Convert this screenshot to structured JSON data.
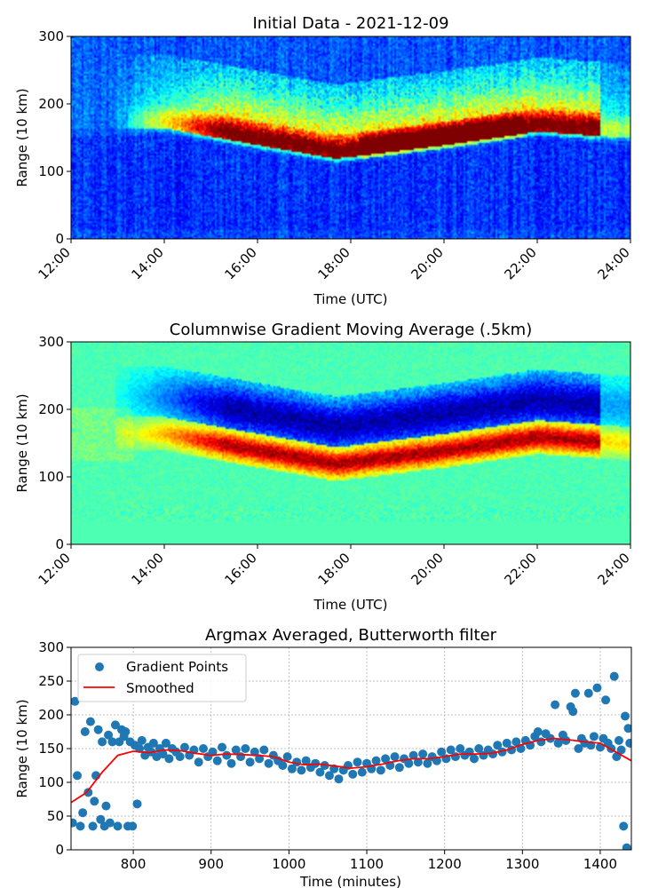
{
  "figure": {
    "panel1": {
      "title": "Initial Data - 2021-12-09",
      "xlabel": "Time (UTC)",
      "ylabel": "Range (10 km)"
    },
    "panel2": {
      "title": "Columnwise Gradient Moving Average (.5km)",
      "xlabel": "Time (UTC)",
      "ylabel": "Range (10 km)"
    },
    "panel3": {
      "title": "Argmax Averaged, Butterworth filter",
      "xlabel": "Time (minutes)",
      "ylabel": "Range (10 km)"
    }
  },
  "chart_data": [
    {
      "type": "heatmap",
      "title": "Initial Data - 2021-12-09",
      "xlabel": "Time (UTC)",
      "ylabel": "Range (10 km)",
      "x_ticks": [
        "12:00",
        "14:00",
        "16:00",
        "18:00",
        "20:00",
        "22:00",
        "24:00"
      ],
      "x_range_minutes": [
        720,
        1440
      ],
      "y_ticks": [
        0,
        100,
        200,
        300
      ],
      "ylim": [
        0,
        300
      ],
      "colormap": "jet",
      "colors": {
        "background": "#0a1aa8",
        "noise": "#1e3cff",
        "mid": "#2fd3ff",
        "high": "#ffd200",
        "peak": "#8b0000"
      },
      "features": {
        "high_band_center_range": [
          [
            720,
            165
          ],
          [
            840,
            165
          ],
          [
            960,
            140
          ],
          [
            1060,
            120
          ],
          [
            1200,
            140
          ],
          [
            1320,
            160
          ],
          [
            1440,
            150
          ]
        ],
        "bright_peak_time_range_minutes": [
          1100,
          1290
        ]
      }
    },
    {
      "type": "heatmap",
      "title": "Columnwise Gradient Moving Average (.5km)",
      "xlabel": "Time (UTC)",
      "ylabel": "Range (10 km)",
      "x_ticks": [
        "12:00",
        "14:00",
        "16:00",
        "18:00",
        "20:00",
        "22:00",
        "24:00"
      ],
      "x_range_minutes": [
        720,
        1440
      ],
      "y_ticks": [
        0,
        100,
        200,
        300
      ],
      "ylim": [
        0,
        300
      ],
      "colormap": "jet",
      "colors": {
        "background": "#3affb4",
        "low_edge": "#0000a0",
        "positive": "#ffe000",
        "max": "#8b0000"
      },
      "features": {
        "flat_band_below_range": 35
      }
    },
    {
      "type": "scatter",
      "title": "Argmax Averaged, Butterworth filter",
      "xlabel": "Time (minutes)",
      "ylabel": "Range (10 km)",
      "xlim": [
        720,
        1440
      ],
      "ylim": [
        0,
        300
      ],
      "x_ticks": [
        800,
        900,
        1000,
        1100,
        1200,
        1300,
        1400
      ],
      "y_ticks": [
        0,
        50,
        100,
        150,
        200,
        250,
        300
      ],
      "grid": true,
      "legend_position": "upper-left",
      "series": [
        {
          "name": "Gradient Points",
          "kind": "scatter",
          "color": "#1f77b4",
          "points": [
            [
              722,
              40
            ],
            [
              725,
              220
            ],
            [
              728,
              110
            ],
            [
              732,
              35
            ],
            [
              735,
              55
            ],
            [
              738,
              175
            ],
            [
              742,
              85
            ],
            [
              745,
              190
            ],
            [
              748,
              35
            ],
            [
              750,
              72
            ],
            [
              752,
              110
            ],
            [
              755,
              178
            ],
            [
              758,
              45
            ],
            [
              760,
              160
            ],
            [
              763,
              35
            ],
            [
              765,
              65
            ],
            [
              768,
              170
            ],
            [
              770,
              40
            ],
            [
              773,
              160
            ],
            [
              777,
              185
            ],
            [
              780,
              35
            ],
            [
              782,
              160
            ],
            [
              785,
              178
            ],
            [
              788,
              168
            ],
            [
              790,
              175
            ],
            [
              793,
              35
            ],
            [
              796,
              160
            ],
            [
              799,
              35
            ],
            [
              802,
              155
            ],
            [
              805,
              68
            ],
            [
              808,
              150
            ],
            [
              811,
              162
            ],
            [
              815,
              140
            ],
            [
              819,
              152
            ],
            [
              823,
              145
            ],
            [
              826,
              158
            ],
            [
              830,
              138
            ],
            [
              834,
              150
            ],
            [
              838,
              142
            ],
            [
              842,
              158
            ],
            [
              846,
              135
            ],
            [
              850,
              150
            ],
            [
              855,
              145
            ],
            [
              860,
              138
            ],
            [
              866,
              152
            ],
            [
              872,
              140
            ],
            [
              878,
              148
            ],
            [
              884,
              130
            ],
            [
              890,
              150
            ],
            [
              896,
              138
            ],
            [
              902,
              145
            ],
            [
              908,
              132
            ],
            [
              914,
              152
            ],
            [
              920,
              140
            ],
            [
              926,
              128
            ],
            [
              932,
              148
            ],
            [
              938,
              138
            ],
            [
              944,
              150
            ],
            [
              950,
              130
            ],
            [
              956,
              145
            ],
            [
              962,
              135
            ],
            [
              968,
              148
            ],
            [
              974,
              128
            ],
            [
              980,
              140
            ],
            [
              986,
              132
            ],
            [
              992,
              125
            ],
            [
              998,
              138
            ],
            [
              1004,
              120
            ],
            [
              1010,
              130
            ],
            [
              1016,
              118
            ],
            [
              1022,
              132
            ],
            [
              1028,
              122
            ],
            [
              1034,
              128
            ],
            [
              1040,
              115
            ],
            [
              1046,
              125
            ],
            [
              1052,
              110
            ],
            [
              1058,
              120
            ],
            [
              1064,
              105
            ],
            [
              1070,
              118
            ],
            [
              1076,
              125
            ],
            [
              1082,
              112
            ],
            [
              1088,
              130
            ],
            [
              1094,
              115
            ],
            [
              1100,
              128
            ],
            [
              1106,
              120
            ],
            [
              1112,
              132
            ],
            [
              1118,
              118
            ],
            [
              1124,
              135
            ],
            [
              1130,
              125
            ],
            [
              1136,
              138
            ],
            [
              1142,
              122
            ],
            [
              1148,
              135
            ],
            [
              1154,
              128
            ],
            [
              1160,
              140
            ],
            [
              1166,
              130
            ],
            [
              1172,
              142
            ],
            [
              1178,
              128
            ],
            [
              1184,
              138
            ],
            [
              1190,
              132
            ],
            [
              1196,
              145
            ],
            [
              1202,
              135
            ],
            [
              1208,
              148
            ],
            [
              1214,
              138
            ],
            [
              1220,
              150
            ],
            [
              1226,
              140
            ],
            [
              1232,
              145
            ],
            [
              1238,
              135
            ],
            [
              1244,
              150
            ],
            [
              1250,
              140
            ],
            [
              1256,
              148
            ],
            [
              1262,
              142
            ],
            [
              1268,
              155
            ],
            [
              1274,
              145
            ],
            [
              1280,
              158
            ],
            [
              1286,
              148
            ],
            [
              1292,
              160
            ],
            [
              1298,
              150
            ],
            [
              1304,
              162
            ],
            [
              1310,
              155
            ],
            [
              1316,
              168
            ],
            [
              1320,
              175
            ],
            [
              1324,
              160
            ],
            [
              1330,
              172
            ],
            [
              1336,
              165
            ],
            [
              1342,
              215
            ],
            [
              1346,
              158
            ],
            [
              1352,
              170
            ],
            [
              1356,
              162
            ],
            [
              1362,
              212
            ],
            [
              1365,
              205
            ],
            [
              1368,
              232
            ],
            [
              1372,
              150
            ],
            [
              1376,
              165
            ],
            [
              1380,
              158
            ],
            [
              1385,
              232
            ],
            [
              1388,
              155
            ],
            [
              1392,
              168
            ],
            [
              1396,
              240
            ],
            [
              1400,
              152
            ],
            [
              1404,
              165
            ],
            [
              1407,
              222
            ],
            [
              1410,
              158
            ],
            [
              1414,
              150
            ],
            [
              1418,
              257
            ],
            [
              1421,
              138
            ],
            [
              1424,
              162
            ],
            [
              1427,
              148
            ],
            [
              1430,
              35
            ],
            [
              1432,
              198
            ],
            [
              1434,
              3
            ],
            [
              1436,
              180
            ],
            [
              1438,
              158
            ]
          ]
        },
        {
          "name": "Smoothed",
          "kind": "line",
          "color": "#ff0000",
          "x": [
            720,
            740,
            760,
            780,
            800,
            820,
            840,
            860,
            880,
            900,
            920,
            940,
            960,
            980,
            1000,
            1020,
            1040,
            1060,
            1080,
            1100,
            1120,
            1140,
            1160,
            1180,
            1200,
            1220,
            1240,
            1260,
            1280,
            1300,
            1320,
            1340,
            1360,
            1380,
            1400,
            1420,
            1440
          ],
          "y": [
            70,
            85,
            115,
            140,
            146,
            144,
            148,
            147,
            143,
            140,
            142,
            141,
            140,
            138,
            130,
            126,
            127,
            124,
            121,
            123,
            127,
            132,
            135,
            135,
            138,
            142,
            142,
            143,
            148,
            156,
            162,
            165,
            163,
            160,
            158,
            145,
            132
          ]
        }
      ]
    }
  ]
}
